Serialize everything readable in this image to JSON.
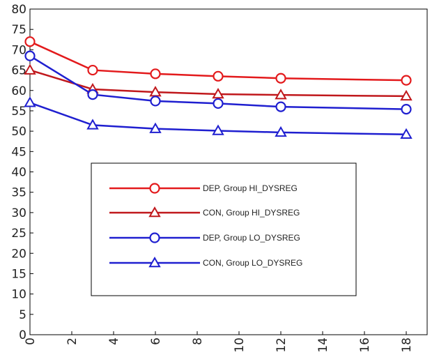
{
  "chart_data": {
    "type": "line",
    "x": [
      0,
      3,
      6,
      9,
      12,
      18
    ],
    "xlim": [
      0,
      19
    ],
    "ylim": [
      0,
      80
    ],
    "xticks": [
      "0",
      "2",
      "4",
      "6",
      "8",
      "10",
      "12",
      "14",
      "16",
      "18"
    ],
    "yticks": [
      "0",
      "5",
      "10",
      "15",
      "20",
      "25",
      "30",
      "35",
      "40",
      "45",
      "50",
      "55",
      "60",
      "65",
      "70",
      "75",
      "80"
    ],
    "grid": false,
    "legend_position": "center-left",
    "series": [
      {
        "name": "DEP, Group HI_DYSREG",
        "color": "#e31a1c",
        "marker": "circle",
        "values": [
          72.0,
          65.0,
          64.1,
          63.5,
          63.0,
          62.5
        ]
      },
      {
        "name": "CON, Group HI_DYSREG",
        "color": "#c0181c",
        "marker": "triangle",
        "values": [
          65.0,
          60.3,
          59.6,
          59.1,
          58.9,
          58.6
        ]
      },
      {
        "name": "DEP, Group LO_DYSREG",
        "color": "#1f1fd0",
        "marker": "circle",
        "values": [
          68.5,
          59.0,
          57.4,
          56.8,
          56.0,
          55.4
        ]
      },
      {
        "name": "CON, Group LO_DYSREG",
        "color": "#1f1fd0",
        "marker": "triangle",
        "values": [
          57.0,
          51.5,
          50.6,
          50.1,
          49.7,
          49.2
        ]
      }
    ]
  }
}
